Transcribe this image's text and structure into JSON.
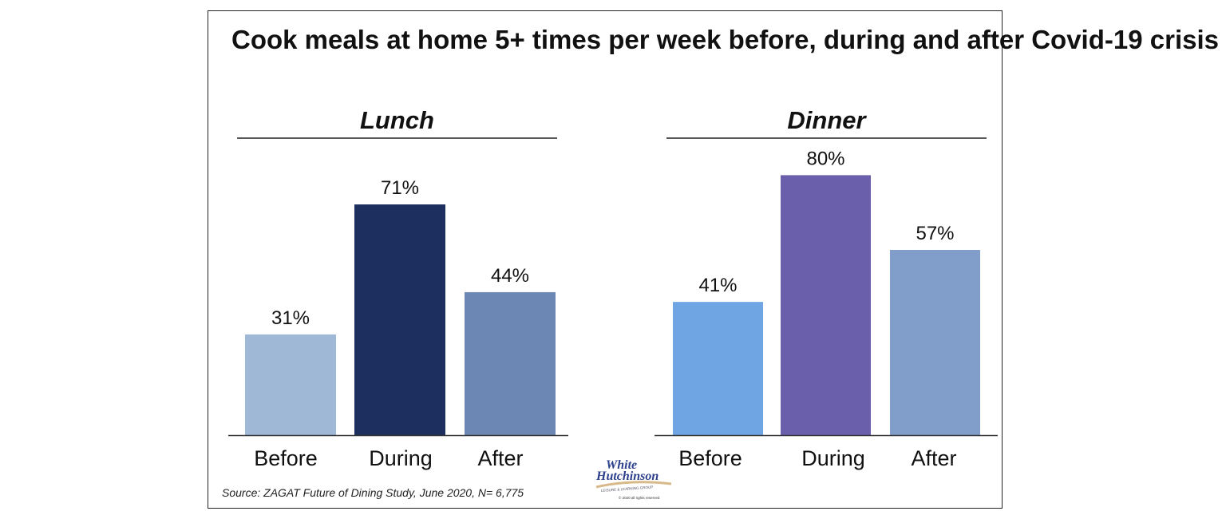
{
  "title": "Cook meals at home 5+ times per week before, during and after Covid-19 crisis",
  "source": "Source: ZAGAT Future of Dining Study, June 2020, N= 6,775",
  "logo": {
    "line1": "White",
    "line2": "Hutchinson",
    "tagline": "LEISURE & LEARNING GROUP",
    "copyright": "© 2020 all rights reserved"
  },
  "chart_data": [
    {
      "type": "bar",
      "title": "Lunch",
      "categories": [
        "Before",
        "During",
        "After"
      ],
      "values": [
        31,
        71,
        44
      ],
      "labels": [
        "31%",
        "71%",
        "44%"
      ],
      "colors": [
        "#9fb8d6",
        "#1c2f5e",
        "#6c87b4"
      ],
      "unit": "%",
      "ylim": [
        0,
        100
      ],
      "grid": false
    },
    {
      "type": "bar",
      "title": "Dinner",
      "categories": [
        "Before",
        "During",
        "After"
      ],
      "values": [
        41,
        80,
        57
      ],
      "labels": [
        "41%",
        "80%",
        "57%"
      ],
      "colors": [
        "#70a5e4",
        "#6a5fab",
        "#819dca"
      ],
      "unit": "%",
      "ylim": [
        0,
        100
      ],
      "grid": false
    }
  ]
}
